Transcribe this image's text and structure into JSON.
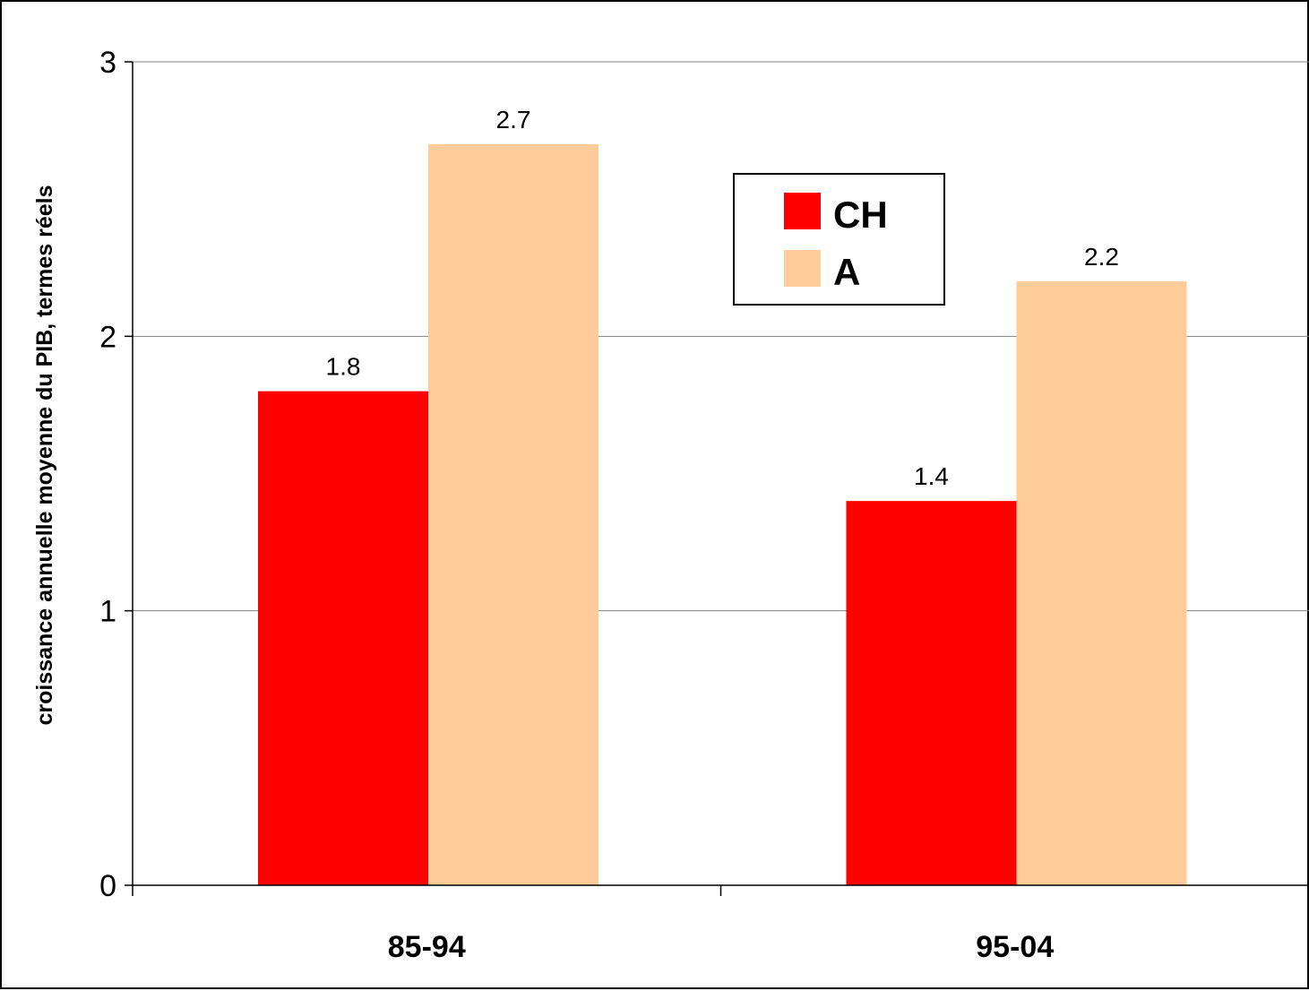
{
  "chart_data": {
    "type": "bar",
    "title": "",
    "xlabel": "",
    "ylabel": "croissance annuelle moyenne du PIB, termes réels",
    "categories": [
      "85-94",
      "95-04"
    ],
    "series": [
      {
        "name": "CH",
        "values": [
          1.8,
          1.4
        ],
        "labels": [
          "1.8",
          "1.4"
        ],
        "color": "#ff0000"
      },
      {
        "name": "A",
        "values": [
          2.7,
          2.2
        ],
        "labels": [
          "2.7",
          "2.2"
        ],
        "color": "#ffcc99"
      }
    ],
    "ylim": [
      0,
      3
    ],
    "yticks": [
      0,
      1,
      2,
      3
    ],
    "ytick_labels": [
      "0",
      "1",
      "2",
      "3"
    ],
    "grid": true,
    "grid_color": "#808080",
    "legend_position": "upper-center"
  }
}
